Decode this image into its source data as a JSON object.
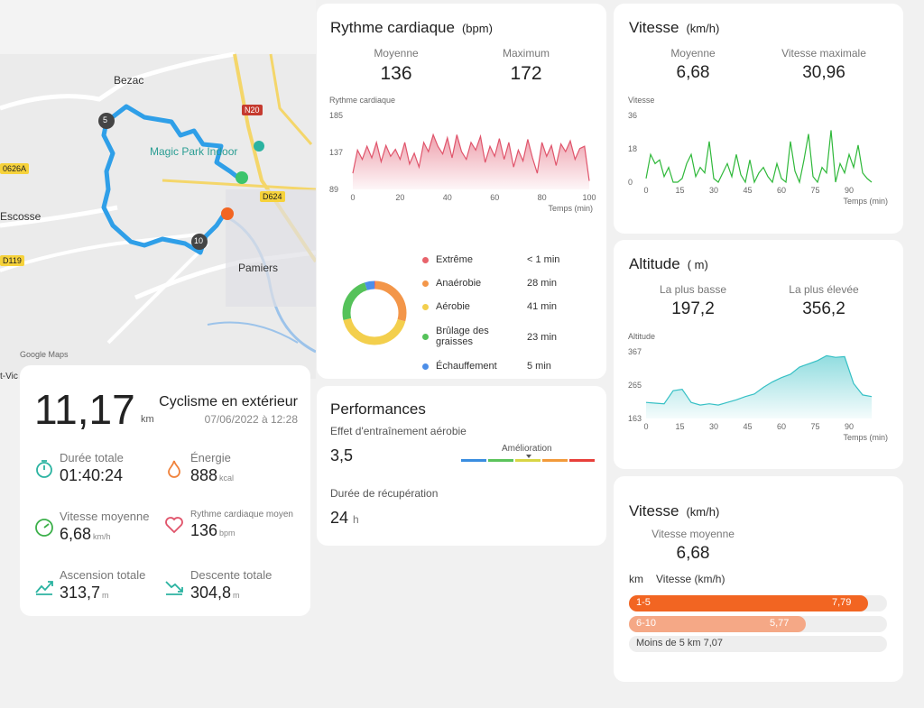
{
  "map": {
    "labels": {
      "bezac": "Bezac",
      "magic": "Magic Park Indoor",
      "escosse": "Escosse",
      "pamiers": "Pamiers",
      "google": "Google Maps",
      "viv": "t-Vic"
    },
    "roads": {
      "n20": "N20",
      "d624": "D624",
      "d626a": "0626A",
      "d119": "D119"
    },
    "markers": {
      "km5": "5",
      "km10": "10"
    }
  },
  "summary": {
    "distance": "11,17",
    "distance_unit": "km",
    "activity": "Cyclisme en extérieur",
    "datetime": "07/06/2022 à 12:28",
    "duration_label": "Durée totale",
    "duration": "01:40:24",
    "energy_label": "Énergie",
    "energy": "888",
    "energy_unit": "kcal",
    "speed_label": "Vitesse moyenne",
    "speed": "6,68",
    "speed_unit": "km/h",
    "hr_label": "Rythme cardiaque moyen",
    "hr": "136",
    "hr_unit": "bpm",
    "ascent_label": "Ascension totale",
    "ascent": "313,7",
    "ascent_unit": "m",
    "descent_label": "Descente totale",
    "descent": "304,8",
    "descent_unit": "m"
  },
  "heart": {
    "title": "Rythme cardiaque",
    "unit": "(bpm)",
    "avg_label": "Moyenne",
    "avg": "136",
    "max_label": "Maximum",
    "max": "172",
    "chart_label": "Rythme cardiaque",
    "xlabel": "Temps (min)",
    "zones": [
      {
        "name": "Extrême",
        "value": "< 1 min",
        "color": "#e8636b"
      },
      {
        "name": "Anaérobie",
        "value": "28 min",
        "color": "#f39649"
      },
      {
        "name": "Aérobie",
        "value": "41 min",
        "color": "#f3cf4d"
      },
      {
        "name": "Brûlage des graisses",
        "value": "23 min",
        "color": "#55c25a"
      },
      {
        "name": "Échauffement",
        "value": "5 min",
        "color": "#4c8ee8"
      }
    ]
  },
  "perf": {
    "title": "Performances",
    "aerobic_label": "Effet d'entraînement aérobie",
    "aerobic_value": "3,5",
    "scale_label": "Amélioration",
    "recovery_label": "Durée de récupération",
    "recovery_value": "24",
    "recovery_unit": "h"
  },
  "speed": {
    "title": "Vitesse",
    "unit": "(km/h)",
    "avg_label": "Moyenne",
    "avg": "6,68",
    "max_label": "Vitesse maximale",
    "max": "30,96",
    "chart_label": "Vitesse",
    "xlabel": "Temps (min)"
  },
  "alt": {
    "title": "Altitude",
    "unit": "( m)",
    "low_label": "La plus basse",
    "low": "197,2",
    "high_label": "La plus élevée",
    "high": "356,2",
    "chart_label": "Altitude",
    "xlabel": "Temps (min)"
  },
  "speed2": {
    "title": "Vitesse",
    "unit": "(km/h)",
    "avg_label": "Vitesse moyenne",
    "avg": "6,68",
    "col_km": "km",
    "col_speed": "Vitesse (km/h)",
    "rows": [
      {
        "label": "1-5",
        "value": "7,79",
        "fraction": 1.0,
        "color": "#f26522"
      },
      {
        "label": "6-10",
        "value": "5,77",
        "fraction": 0.74,
        "color": "#f5a886"
      },
      {
        "label": "Moins de 5 km 7,07",
        "value": "",
        "fraction": 0,
        "color": "#eeeeee"
      }
    ]
  },
  "chart_data": [
    {
      "type": "area",
      "title": "Rythme cardiaque",
      "xlabel": "Temps (min)",
      "ylabel": "Rythme cardiaque",
      "ylim": [
        89,
        185
      ],
      "yticks": [
        89,
        137,
        185
      ],
      "xlim": [
        0,
        100
      ],
      "xticks": [
        0,
        20,
        40,
        60,
        80,
        100
      ],
      "color": "#e0546b",
      "x": [
        0,
        2,
        4,
        6,
        8,
        10,
        12,
        14,
        16,
        18,
        20,
        22,
        24,
        26,
        28,
        30,
        32,
        34,
        36,
        38,
        40,
        42,
        44,
        46,
        48,
        50,
        52,
        54,
        56,
        58,
        60,
        62,
        64,
        66,
        68,
        70,
        72,
        74,
        76,
        78,
        80,
        82,
        84,
        86,
        88,
        90,
        92,
        94,
        96,
        98,
        100
      ],
      "y": [
        110,
        140,
        128,
        145,
        130,
        150,
        125,
        146,
        132,
        141,
        128,
        150,
        122,
        136,
        118,
        150,
        138,
        160,
        145,
        135,
        156,
        130,
        160,
        138,
        128,
        150,
        140,
        158,
        124,
        145,
        132,
        155,
        128,
        150,
        118,
        140,
        126,
        154,
        130,
        110,
        150,
        132,
        146,
        120,
        148,
        138,
        152,
        128,
        142,
        145,
        100
      ]
    },
    {
      "type": "pie",
      "title": "",
      "categories": [
        "Extrême",
        "Anaérobie",
        "Aérobie",
        "Brûlage des graisses",
        "Échauffement"
      ],
      "values": [
        0.5,
        28,
        41,
        23,
        5
      ]
    },
    {
      "type": "line",
      "title": "Vitesse",
      "xlabel": "Temps (min)",
      "ylabel": "Vitesse",
      "ylim": [
        0,
        36
      ],
      "yticks": [
        0,
        18,
        36
      ],
      "xlim": [
        0,
        100
      ],
      "xticks": [
        0,
        15,
        30,
        45,
        60,
        75,
        90
      ],
      "color": "#2fb83a",
      "x": [
        0,
        2,
        4,
        6,
        8,
        10,
        12,
        14,
        16,
        18,
        20,
        22,
        24,
        26,
        28,
        30,
        32,
        34,
        36,
        38,
        40,
        42,
        44,
        46,
        48,
        50,
        52,
        54,
        56,
        58,
        60,
        62,
        64,
        66,
        68,
        70,
        72,
        74,
        76,
        78,
        80,
        82,
        84,
        86,
        88,
        90,
        92,
        94,
        96,
        98,
        100
      ],
      "y": [
        2,
        15,
        10,
        12,
        3,
        8,
        0,
        0,
        2,
        10,
        15,
        3,
        8,
        5,
        22,
        2,
        0,
        5,
        10,
        3,
        15,
        4,
        0,
        12,
        0,
        5,
        8,
        3,
        0,
        10,
        2,
        0,
        22,
        6,
        0,
        12,
        26,
        3,
        0,
        8,
        5,
        28,
        0,
        10,
        5,
        15,
        8,
        20,
        5,
        2,
        0
      ]
    },
    {
      "type": "area",
      "title": "Altitude",
      "xlabel": "Temps (min)",
      "ylabel": "Altitude",
      "ylim": [
        163,
        367
      ],
      "yticks": [
        163,
        265,
        367
      ],
      "xlim": [
        0,
        100
      ],
      "xticks": [
        0,
        15,
        30,
        45,
        60,
        75,
        90
      ],
      "color": "#36c0c5",
      "x": [
        0,
        4,
        8,
        12,
        16,
        20,
        24,
        28,
        32,
        36,
        40,
        44,
        48,
        52,
        56,
        60,
        64,
        68,
        72,
        76,
        80,
        84,
        88,
        92,
        96,
        100
      ],
      "y": [
        212,
        210,
        208,
        248,
        252,
        212,
        204,
        208,
        204,
        212,
        220,
        230,
        238,
        258,
        275,
        288,
        298,
        320,
        330,
        340,
        355,
        350,
        352,
        270,
        235,
        230
      ]
    }
  ]
}
